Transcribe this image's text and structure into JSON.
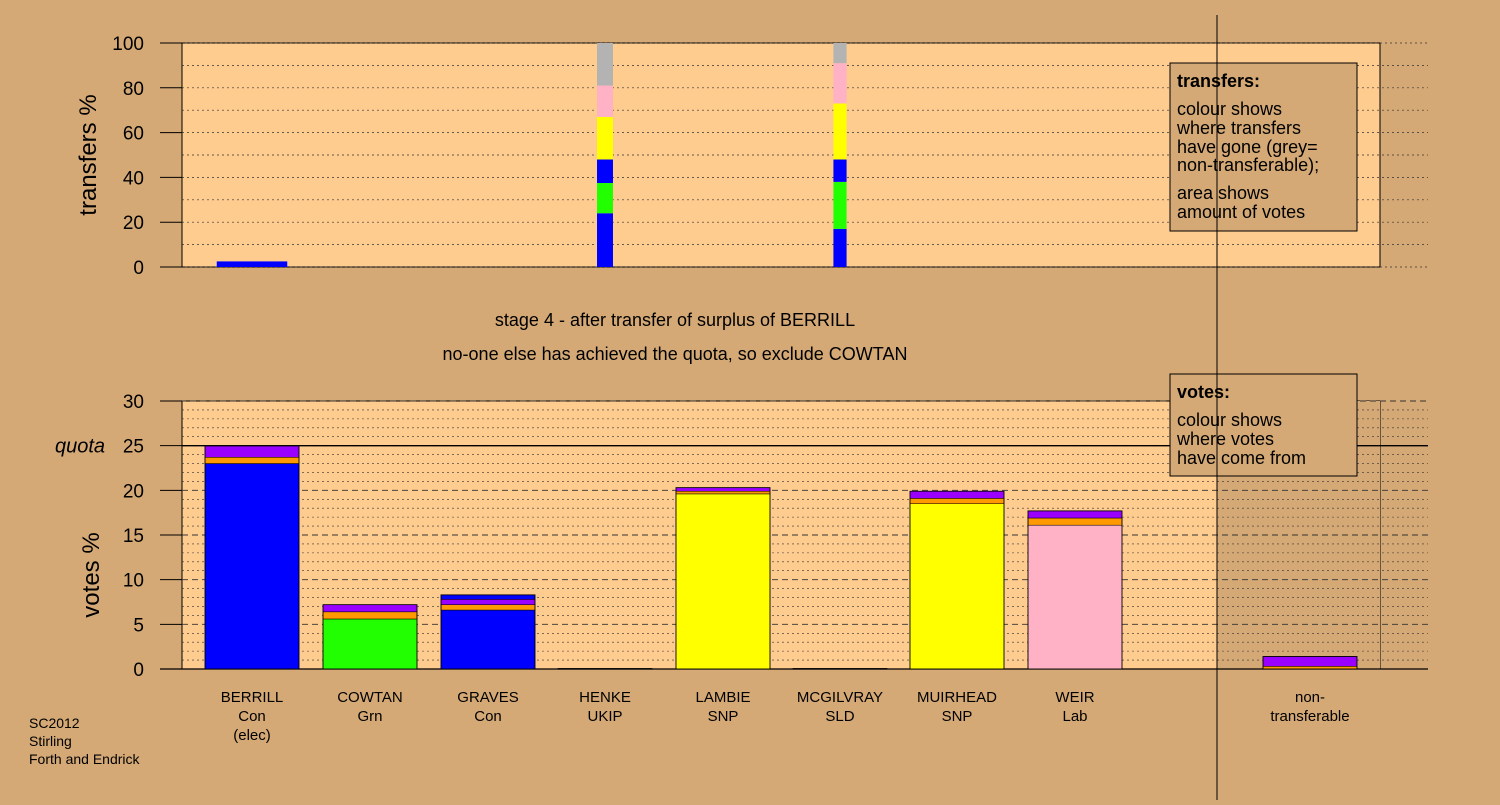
{
  "colors": {
    "background": "#d4a976",
    "plot_bg": "#ffcc8f",
    "nontransfer_bg": "#d4a976",
    "Con": "#0000ff",
    "Grn": "#22ff00",
    "SNP": "#ffff00",
    "Lab": "#ffb1c5",
    "orange": "#ff9900",
    "purple": "#9900ff",
    "grey": "#b3b3b3"
  },
  "transfers_panel": {
    "ylabel": "transfers %",
    "legend_title": "transfers:",
    "legend_line1": "colour shows",
    "legend_line2": "where transfers",
    "legend_line3": "have gone (grey=",
    "legend_line4": "non-transferable);",
    "legend_line5": "area shows",
    "legend_line6": "amount of votes"
  },
  "stage_text": {
    "line1": "stage 4 - after transfer of surplus of BERRILL",
    "line2": "no-one else has achieved the quota, so exclude COWTAN"
  },
  "votes_panel": {
    "ylabel": "votes %",
    "quota_label": "quota",
    "legend_title": "votes:",
    "legend_line1": "colour shows",
    "legend_line2": "where votes",
    "legend_line3": "have come from"
  },
  "footer": {
    "line1": "SC2012",
    "line2": "Stirling",
    "line3": "Forth and Endrick"
  },
  "chart_data": [
    {
      "type": "bar",
      "panel": "transfers",
      "ylabel": "transfers %",
      "ylim": [
        0,
        100
      ],
      "yticks": [
        0,
        20,
        40,
        60,
        80,
        100
      ],
      "categories": [
        "BERRILL",
        "COWTAN",
        "GRAVES",
        "HENKE",
        "LAMBIE",
        "MCGILVRAY",
        "MUIRHEAD",
        "WEIR",
        "non-transferable"
      ],
      "bars": [
        {
          "category": "BERRILL",
          "width_share": 0.75,
          "segments": [
            {
              "color": "Con",
              "value": 2.5
            }
          ]
        },
        {
          "category": "HENKE",
          "width_share": 0.17,
          "segments": [
            {
              "color": "Con",
              "value": 24
            },
            {
              "color": "Grn",
              "value": 13.5
            },
            {
              "color": "Con",
              "value": 10.5
            },
            {
              "color": "SNP",
              "value": 19
            },
            {
              "color": "Lab",
              "value": 14
            },
            {
              "color": "grey",
              "value": 19
            }
          ]
        },
        {
          "category": "MCGILVRAY",
          "width_share": 0.14,
          "segments": [
            {
              "color": "Con",
              "value": 17
            },
            {
              "color": "Grn",
              "value": 21
            },
            {
              "color": "Con",
              "value": 10
            },
            {
              "color": "SNP",
              "value": 25
            },
            {
              "color": "Lab",
              "value": 18
            },
            {
              "color": "grey",
              "value": 9
            }
          ]
        }
      ],
      "grid": true
    },
    {
      "type": "bar",
      "panel": "votes",
      "ylabel": "votes %",
      "ylim": [
        0,
        30
      ],
      "yticks": [
        0,
        5,
        10,
        15,
        20,
        25,
        30
      ],
      "quota": 25,
      "candidates": [
        {
          "name": "BERRILL",
          "party": "Con",
          "note": "(elec)",
          "segments": [
            {
              "color": "Con",
              "value": 23
            },
            {
              "color": "orange",
              "value": 0.7
            },
            {
              "color": "purple",
              "value": 1.3
            }
          ]
        },
        {
          "name": "COWTAN",
          "party": "Grn",
          "note": "",
          "segments": [
            {
              "color": "Grn",
              "value": 5.6
            },
            {
              "color": "orange",
              "value": 0.8
            },
            {
              "color": "purple",
              "value": 0.8
            }
          ]
        },
        {
          "name": "GRAVES",
          "party": "Con",
          "note": "",
          "segments": [
            {
              "color": "Con",
              "value": 6.6
            },
            {
              "color": "orange",
              "value": 0.6
            },
            {
              "color": "purple",
              "value": 0.6
            },
            {
              "color": "Con",
              "value": 0.5
            }
          ]
        },
        {
          "name": "HENKE",
          "party": "UKIP",
          "note": "",
          "segments": [
            {
              "color": "Con",
              "value": 0.05
            }
          ]
        },
        {
          "name": "LAMBIE",
          "party": "SNP",
          "note": "",
          "segments": [
            {
              "color": "SNP",
              "value": 19.6
            },
            {
              "color": "orange",
              "value": 0.3
            },
            {
              "color": "purple",
              "value": 0.4
            }
          ]
        },
        {
          "name": "MCGILVRAY",
          "party": "SLD",
          "note": "",
          "segments": [
            {
              "color": "Con",
              "value": 0.05
            }
          ]
        },
        {
          "name": "MUIRHEAD",
          "party": "SNP",
          "note": "",
          "segments": [
            {
              "color": "SNP",
              "value": 18.5
            },
            {
              "color": "orange",
              "value": 0.6
            },
            {
              "color": "purple",
              "value": 0.8
            }
          ]
        },
        {
          "name": "WEIR",
          "party": "Lab",
          "note": "",
          "segments": [
            {
              "color": "Lab",
              "value": 16.1
            },
            {
              "color": "orange",
              "value": 0.8
            },
            {
              "color": "purple",
              "value": 0.8
            }
          ]
        }
      ],
      "nontransferable": {
        "label_line1": "non-",
        "label_line2": "transferable",
        "segments": [
          {
            "color": "orange",
            "value": 0.3
          },
          {
            "color": "purple",
            "value": 1.1
          }
        ]
      },
      "grid": true
    }
  ]
}
